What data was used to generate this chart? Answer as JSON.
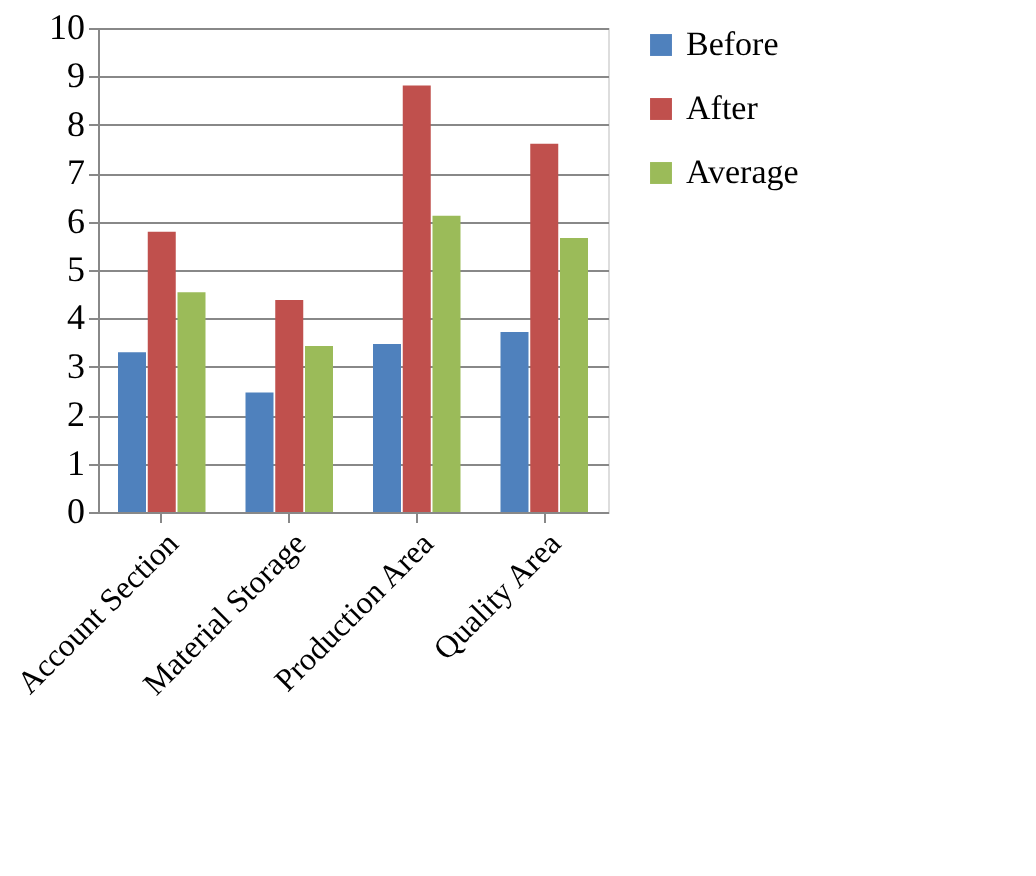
{
  "chart_data": {
    "type": "bar",
    "categories": [
      "Account Section",
      "Material Storage",
      "Production Area",
      "Quality Area"
    ],
    "series": [
      {
        "name": "Before",
        "color": "#4f81bd",
        "values": [
          3.3,
          2.47,
          3.47,
          3.72
        ]
      },
      {
        "name": "After",
        "color": "#c0504d",
        "values": [
          5.79,
          4.38,
          8.81,
          7.61
        ]
      },
      {
        "name": "Average",
        "color": "#9bbb59",
        "values": [
          4.54,
          3.43,
          6.12,
          5.66
        ]
      }
    ],
    "ylim": [
      0,
      10
    ],
    "yticks": [
      0,
      1,
      2,
      3,
      4,
      5,
      6,
      7,
      8,
      9,
      10
    ],
    "grid": "y",
    "legend": "right"
  }
}
